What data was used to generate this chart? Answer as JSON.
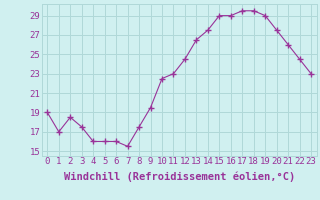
{
  "x": [
    0,
    1,
    2,
    3,
    4,
    5,
    6,
    7,
    8,
    9,
    10,
    11,
    12,
    13,
    14,
    15,
    16,
    17,
    18,
    19,
    20,
    21,
    22,
    23
  ],
  "y": [
    19,
    17,
    18.5,
    17.5,
    16,
    16,
    16,
    15.5,
    17.5,
    19.5,
    22.5,
    23,
    24.5,
    26.5,
    27.5,
    29,
    29,
    29.5,
    29.5,
    29,
    27.5,
    26,
    24.5,
    23
  ],
  "line_color": "#993399",
  "marker_color": "#993399",
  "bg_color": "#d0f0f0",
  "grid_color": "#b0d8d8",
  "xlabel": "Windchill (Refroidissement éolien,°C)",
  "ylabel_ticks": [
    15,
    17,
    19,
    21,
    23,
    25,
    27,
    29
  ],
  "ylim": [
    14.5,
    30.2
  ],
  "xlim": [
    -0.5,
    23.5
  ],
  "tick_color": "#993399",
  "xlabel_color": "#993399",
  "font_size": 6.5,
  "xlabel_font_size": 7.5
}
